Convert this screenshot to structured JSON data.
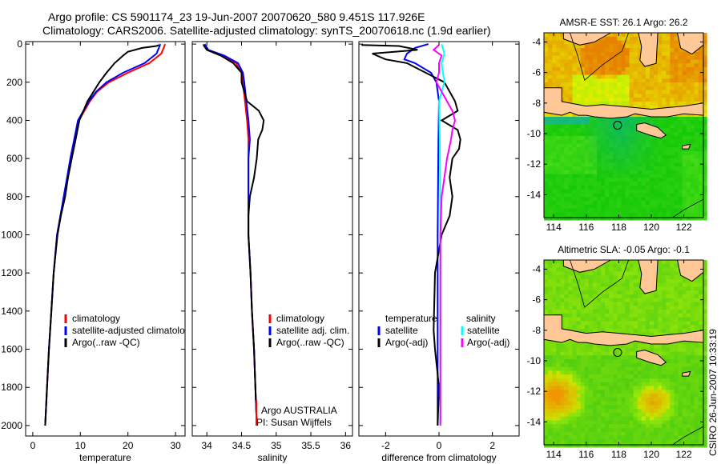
{
  "title": {
    "line1": "Argo profile: CS 5901174_23 19-Jun-2007 20070620_580 9.451S 117.926E",
    "line2": "Climatology: CARS2006. Satellite-adjusted climatology: synTS_20070618.nc (1.9d earlier)"
  },
  "footer_stamp": "CSIRO 26-Jun-2007 10:33:19",
  "colors": {
    "climatology": "#ff0000",
    "satellite": "#0000ff",
    "argo": "#000000",
    "sal_satellite": "#00ffff",
    "sal_argo": "#ff00ff",
    "land": "#ffc896"
  },
  "chart_data": [
    {
      "type": "line",
      "id": "temperature",
      "xlabel": "temperature",
      "ylabel": "",
      "xlim": [
        -1.5,
        32
      ],
      "ylim": [
        2055,
        -13
      ],
      "xticks": [
        0,
        10,
        20,
        30
      ],
      "yticks": [
        0,
        200,
        400,
        600,
        800,
        1000,
        1200,
        1400,
        1600,
        1800,
        2000
      ],
      "legend": [
        "climatology",
        "satellite-adjusted climatology",
        "Argo(..raw -QC)"
      ],
      "series": [
        {
          "name": "climatology",
          "color": "#ff0000",
          "depth": [
            0,
            20,
            50,
            100,
            150,
            200,
            250,
            300,
            400,
            500,
            600,
            700,
            800,
            900,
            1000,
            1200,
            1400,
            1600,
            1800,
            2000
          ],
          "values": [
            27.8,
            27.5,
            27,
            24.5,
            20,
            16,
            13.5,
            12,
            9.7,
            8.8,
            8,
            7.3,
            6.6,
            5.8,
            5.1,
            4.4,
            3.9,
            3.4,
            3,
            2.6
          ]
        },
        {
          "name": "satellite-adjusted climatology",
          "color": "#0000ff",
          "depth": [
            0,
            20,
            50,
            100,
            150,
            200,
            250,
            300,
            400,
            500,
            600,
            700,
            800,
            900,
            1000,
            1200,
            1400,
            1600,
            1800,
            2000
          ],
          "values": [
            26.8,
            26.5,
            26,
            23.5,
            19,
            15.5,
            13.3,
            11.8,
            9.5,
            8.7,
            7.9,
            7.2,
            6.5,
            5.8,
            5.1,
            4.4,
            3.9,
            3.4,
            3,
            2.6
          ]
        },
        {
          "name": "Argo(..raw -QC)",
          "color": "#000000",
          "depth": [
            5,
            10,
            20,
            40,
            60,
            100,
            150,
            200,
            300,
            400,
            500,
            600,
            700,
            800,
            900,
            1000,
            1200,
            1400,
            1600,
            1800,
            2000
          ],
          "values": [
            26.5,
            26,
            23,
            20,
            19,
            17.2,
            15.5,
            14,
            11.5,
            9.8,
            9,
            8.2,
            7.4,
            6.8,
            5.9,
            5.2,
            4.4,
            3.9,
            3.4,
            3,
            2.6
          ]
        }
      ]
    },
    {
      "type": "line",
      "id": "salinity",
      "xlabel": "salinity",
      "xlim": [
        33.79,
        36.1
      ],
      "ylim": [
        2055,
        -13
      ],
      "xticks": [
        34,
        34.5,
        35,
        35.5,
        36
      ],
      "legend": [
        "climatology",
        "satellite adj. clim.",
        "Argo(..raw -QC)"
      ],
      "annotation": [
        "Argo AUSTRALIA",
        "PI: Susan Wijffels"
      ],
      "series": [
        {
          "name": "climatology",
          "color": "#ff0000",
          "depth": [
            0,
            30,
            60,
            100,
            150,
            200,
            300,
            400,
            500,
            600,
            800,
            1000,
            1200,
            1400,
            1600,
            1800,
            2000
          ],
          "values": [
            33.95,
            34.0,
            34.2,
            34.42,
            34.5,
            34.52,
            34.55,
            34.58,
            34.6,
            34.6,
            34.6,
            34.6,
            34.63,
            34.65,
            34.68,
            34.7,
            34.72
          ]
        },
        {
          "name": "satellite adj. clim.",
          "color": "#0000ff",
          "depth": [
            0,
            30,
            60,
            100,
            150,
            200,
            300,
            400,
            500,
            600,
            800,
            1000,
            1200,
            1400,
            1600,
            1800,
            2000
          ],
          "values": [
            33.97,
            34.02,
            34.25,
            34.45,
            34.52,
            34.54,
            34.57,
            34.6,
            34.62,
            34.6,
            34.6,
            34.6,
            34.63,
            34.65,
            34.68,
            34.7,
            34.72
          ]
        },
        {
          "name": "Argo(..raw -QC)",
          "color": "#000000",
          "depth": [
            5,
            30,
            60,
            100,
            150,
            200,
            300,
            350,
            400,
            450,
            500,
            600,
            700,
            800,
            900,
            1000,
            1200,
            1400,
            1600,
            1800,
            2000
          ],
          "values": [
            33.95,
            34.0,
            34.2,
            34.38,
            34.5,
            34.5,
            34.58,
            34.75,
            34.82,
            34.8,
            34.74,
            34.72,
            34.68,
            34.62,
            34.6,
            34.6,
            34.63,
            34.65,
            34.68,
            34.7,
            34.72
          ]
        }
      ]
    },
    {
      "type": "line",
      "id": "difference",
      "xlabel": "difference from climatology",
      "xlim": [
        -3,
        3
      ],
      "ylim": [
        2055,
        -13
      ],
      "xticks": [
        -2,
        0,
        2
      ],
      "legend_temperature": {
        "heading": "temperature",
        "items": [
          "satellite",
          "Argo(-adj)"
        ]
      },
      "legend_salinity": {
        "heading": "salinity",
        "items": [
          "satellite",
          "Argo(-adj)"
        ]
      },
      "series": [
        {
          "name": "temperature satellite",
          "color": "#0000ff",
          "depth": [
            0,
            20,
            50,
            80,
            100,
            150,
            200,
            300,
            500,
            1000,
            1500,
            2000
          ],
          "values": [
            -0.4,
            -0.9,
            -1.2,
            -1.3,
            -0.9,
            -0.3,
            -0.1,
            0,
            -0.02,
            -0.05,
            -0.05,
            -0.05
          ]
        },
        {
          "name": "temperature Argo(-adj)",
          "color": "#000000",
          "depth": [
            5,
            10,
            30,
            50,
            80,
            100,
            150,
            200,
            300,
            350,
            400,
            450,
            500,
            550,
            600,
            700,
            800,
            900,
            1000,
            1200,
            1500,
            1600,
            1800,
            2000
          ],
          "values": [
            -2.9,
            -1.5,
            -0.8,
            -2.5,
            -2.0,
            -1.2,
            -0.5,
            0.2,
            0.6,
            0.7,
            0.1,
            0.7,
            0.8,
            0.75,
            0.5,
            0.4,
            0.5,
            0.4,
            0.1,
            -0.15,
            -0.2,
            -0.15,
            0,
            -0.05
          ]
        },
        {
          "name": "salinity satellite",
          "color": "#00ffff",
          "depth": [
            0,
            50,
            100,
            200,
            300,
            500,
            1000,
            1500,
            2000
          ],
          "values": [
            0.1,
            0.2,
            0.1,
            0.2,
            0.0,
            0.03,
            0.05,
            0.05,
            0.05
          ]
        },
        {
          "name": "salinity Argo(-adj)",
          "color": "#ff00ff",
          "depth": [
            5,
            30,
            60,
            100,
            150,
            200,
            300,
            350,
            400,
            450,
            500,
            600,
            700,
            800,
            1000,
            1500,
            2000
          ],
          "values": [
            0,
            -0.2,
            0.1,
            0,
            0,
            -0.1,
            0.3,
            0.5,
            0.6,
            0.5,
            0.45,
            0.3,
            0.2,
            0.1,
            0.05,
            0.05,
            0.05
          ]
        }
      ]
    },
    {
      "type": "heatmap",
      "id": "sst-map",
      "title": "AMSR-E SST: 26.1 Argo: 26.2",
      "xlim": [
        113.4,
        123.2
      ],
      "ylim": [
        -15.5,
        -3.4
      ],
      "xticks": [
        114,
        116,
        118,
        120,
        122
      ],
      "yticks": [
        -4,
        -6,
        -8,
        -10,
        -12,
        -14
      ],
      "profile_location": [
        117.926,
        -9.451
      ]
    },
    {
      "type": "heatmap",
      "id": "sla-map",
      "title": "Altimetric SLA: -0.05 Argo: -0.1",
      "xlim": [
        113.4,
        123.2
      ],
      "ylim": [
        -15.5,
        -3.4
      ],
      "xticks": [
        114,
        116,
        118,
        120,
        122
      ],
      "yticks": [
        -4,
        -6,
        -8,
        -10,
        -12,
        -14
      ],
      "profile_location": [
        117.926,
        -9.451
      ]
    }
  ]
}
